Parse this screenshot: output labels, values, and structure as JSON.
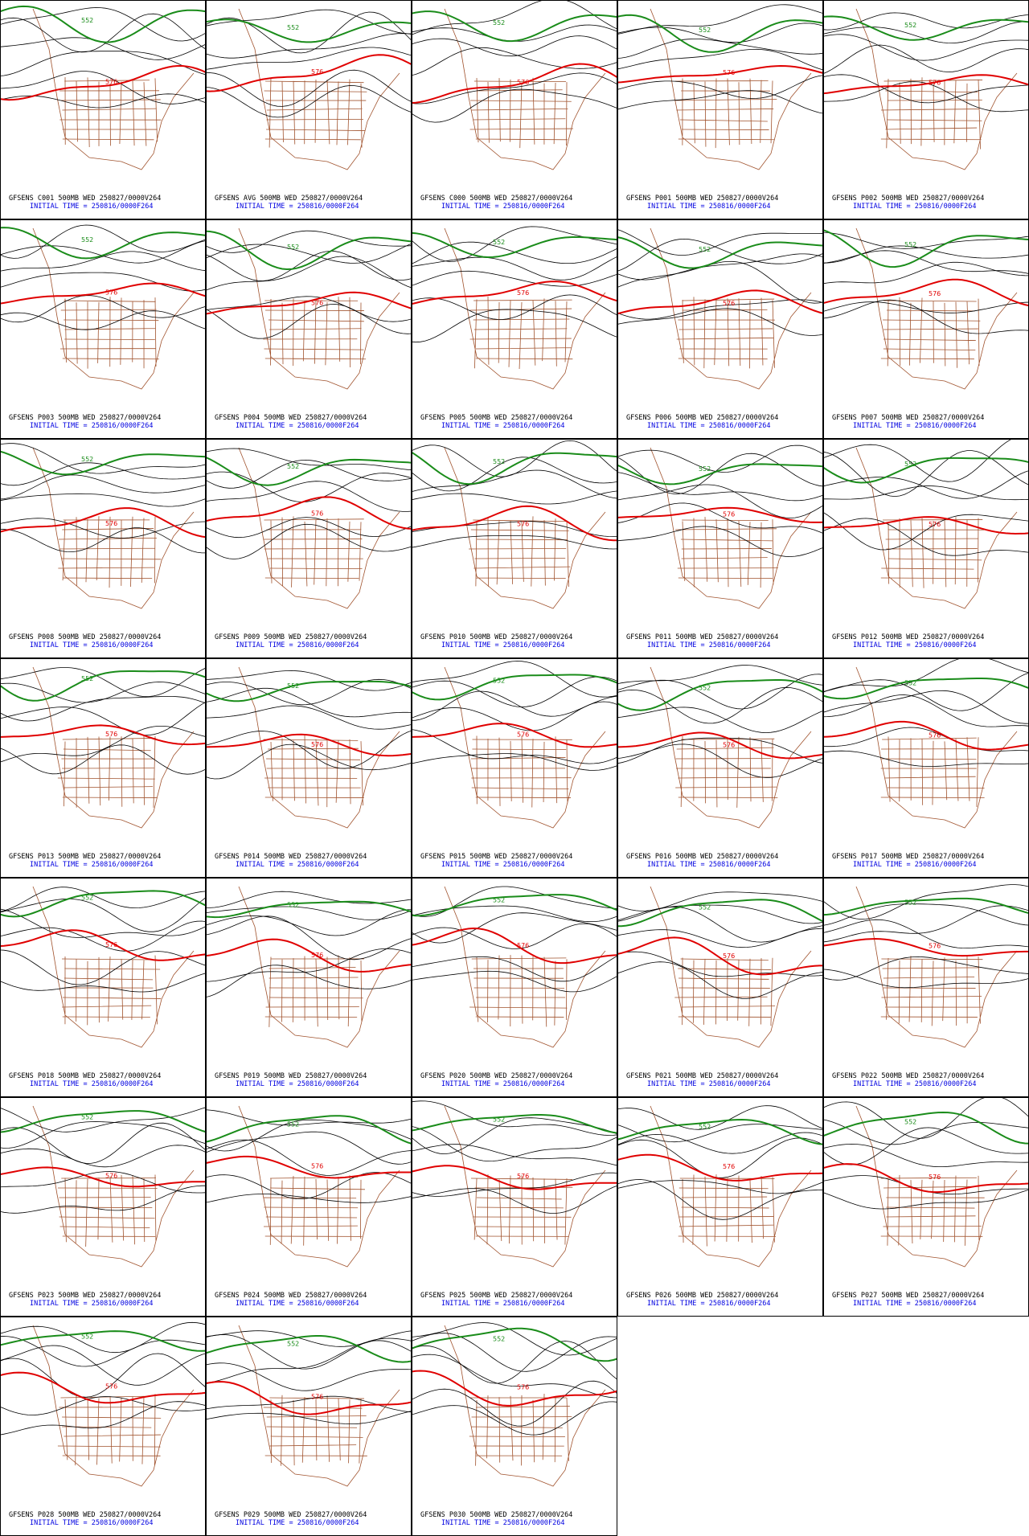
{
  "panels": [
    {
      "title": "GFSENS C001 500MB WED 250827/0000V264",
      "init": "INITIAL TIME = 250816/0000F264",
      "contour_labels": [
        "552",
        "576"
      ]
    },
    {
      "title": "GFSENS AVG 500MB WED 250827/0000V264",
      "init": "INITIAL TIME = 250816/0000F264",
      "contour_labels": [
        "552",
        "576"
      ]
    },
    {
      "title": "GFSENS C000 500MB WED 250827/0000V264",
      "init": "INITIAL TIME = 250816/0000F264",
      "contour_labels": [
        "552",
        "576"
      ]
    },
    {
      "title": "GFSENS P001 500MB WED 250827/0000V264",
      "init": "INITIAL TIME = 250816/0000F264",
      "contour_labels": [
        "552",
        "576"
      ]
    },
    {
      "title": "GFSENS P002 500MB WED 250827/0000V264",
      "init": "INITIAL TIME = 250816/0000F264",
      "contour_labels": [
        "552",
        "576"
      ]
    },
    {
      "title": "GFSENS P003 500MB WED 250827/0000V264",
      "init": "INITIAL TIME = 250816/0000F264",
      "contour_labels": [
        "552",
        "576"
      ]
    },
    {
      "title": "GFSENS P004 500MB WED 250827/0000V264",
      "init": "INITIAL TIME = 250816/0000F264",
      "contour_labels": [
        "552",
        "576"
      ]
    },
    {
      "title": "GFSENS P005 500MB WED 250827/0000V264",
      "init": "INITIAL TIME = 250816/0000F264",
      "contour_labels": [
        "552",
        "576"
      ]
    },
    {
      "title": "GFSENS P006 500MB WED 250827/0000V264",
      "init": "INITIAL TIME = 250816/0000F264",
      "contour_labels": [
        "552",
        "576"
      ]
    },
    {
      "title": "GFSENS P007 500MB WED 250827/0000V264",
      "init": "INITIAL TIME = 250816/0000F264",
      "contour_labels": [
        "552",
        "576"
      ]
    },
    {
      "title": "GFSENS P008 500MB WED 250827/0000V264",
      "init": "INITIAL TIME = 250816/0000F264",
      "contour_labels": [
        "552",
        "576"
      ]
    },
    {
      "title": "GFSENS P009 500MB WED 250827/0000V264",
      "init": "INITIAL TIME = 250816/0000F264",
      "contour_labels": [
        "552",
        "576"
      ]
    },
    {
      "title": "GFSENS P010 500MB WED 250827/0000V264",
      "init": "INITIAL TIME = 250816/0000F264",
      "contour_labels": [
        "552",
        "576"
      ]
    },
    {
      "title": "GFSENS P011 500MB WED 250827/0000V264",
      "init": "INITIAL TIME = 250816/0000F264",
      "contour_labels": [
        "552",
        "576"
      ]
    },
    {
      "title": "GFSENS P012 500MB WED 250827/0000V264",
      "init": "INITIAL TIME = 250816/0000F264",
      "contour_labels": [
        "552",
        "576"
      ]
    },
    {
      "title": "GFSENS P013 500MB WED 250827/0000V264",
      "init": "INITIAL TIME = 250816/0000F264",
      "contour_labels": [
        "552",
        "576"
      ]
    },
    {
      "title": "GFSENS P014 500MB WED 250827/0000V264",
      "init": "INITIAL TIME = 250816/0000F264",
      "contour_labels": [
        "552",
        "576"
      ]
    },
    {
      "title": "GFSENS P015 500MB WED 250827/0000V264",
      "init": "INITIAL TIME = 250816/0000F264",
      "contour_labels": [
        "552",
        "576"
      ]
    },
    {
      "title": "GFSENS P016 500MB WED 250827/0000V264",
      "init": "INITIAL TIME = 250816/0000F264",
      "contour_labels": [
        "552",
        "576"
      ]
    },
    {
      "title": "GFSENS P017 500MB WED 250827/0000V264",
      "init": "INITIAL TIME = 250816/0000F264",
      "contour_labels": [
        "552",
        "576"
      ]
    },
    {
      "title": "GFSENS P018 500MB WED 250827/0000V264",
      "init": "INITIAL TIME = 250816/0000F264",
      "contour_labels": [
        "552",
        "576"
      ]
    },
    {
      "title": "GFSENS P019 500MB WED 250827/0000V264",
      "init": "INITIAL TIME = 250816/0000F264",
      "contour_labels": [
        "552",
        "576"
      ]
    },
    {
      "title": "GFSENS P020 500MB WED 250827/0000V264",
      "init": "INITIAL TIME = 250816/0000F264",
      "contour_labels": [
        "552",
        "576"
      ]
    },
    {
      "title": "GFSENS P021 500MB WED 250827/0000V264",
      "init": "INITIAL TIME = 250816/0000F264",
      "contour_labels": [
        "552",
        "576"
      ]
    },
    {
      "title": "GFSENS P022 500MB WED 250827/0000V264",
      "init": "INITIAL TIME = 250816/0000F264",
      "contour_labels": [
        "552",
        "576"
      ]
    },
    {
      "title": "GFSENS P023 500MB WED 250827/0000V264",
      "init": "INITIAL TIME = 250816/0000F264",
      "contour_labels": [
        "552",
        "576"
      ]
    },
    {
      "title": "GFSENS P024 500MB WED 250827/0000V264",
      "init": "INITIAL TIME = 250816/0000F264",
      "contour_labels": [
        "552",
        "576"
      ]
    },
    {
      "title": "GFSENS P025 500MB WED 250827/0000V264",
      "init": "INITIAL TIME = 250816/0000F264",
      "contour_labels": [
        "552",
        "576"
      ]
    },
    {
      "title": "GFSENS P026 500MB WED 250827/0000V264",
      "init": "INITIAL TIME = 250816/0000F264",
      "contour_labels": [
        "552",
        "576"
      ]
    },
    {
      "title": "GFSENS P027 500MB WED 250827/0000V264",
      "init": "INITIAL TIME = 250816/0000F264",
      "contour_labels": [
        "552",
        "576"
      ]
    },
    {
      "title": "GFSENS P028 500MB WED 250827/0000V264",
      "init": "INITIAL TIME = 250816/0000F264",
      "contour_labels": [
        "552",
        "576"
      ]
    },
    {
      "title": "GFSENS P029 500MB WED 250827/0000V264",
      "init": "INITIAL TIME = 250816/0000F264",
      "contour_labels": [
        "552",
        "576"
      ]
    },
    {
      "title": "GFSENS P030 500MB WED 250827/0000V264",
      "init": "INITIAL TIME = 250816/0000F264",
      "contour_labels": [
        "552",
        "576"
      ]
    }
  ]
}
